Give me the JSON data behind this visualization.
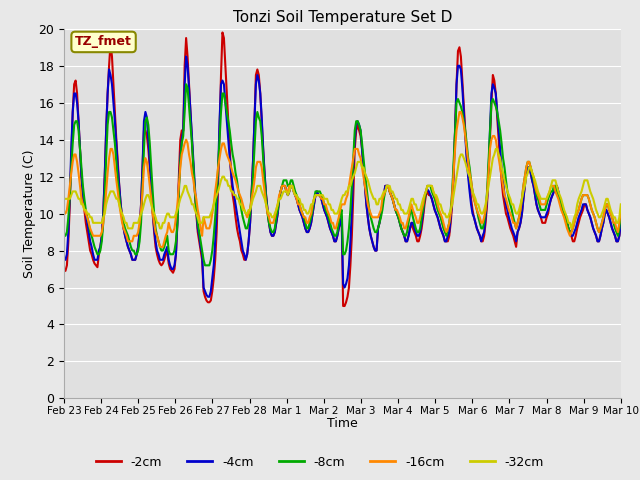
{
  "title": "Tonzi Soil Temperature Set D",
  "xlabel": "Time",
  "ylabel": "Soil Temperature (C)",
  "ylim": [
    0,
    20
  ],
  "yticks": [
    0,
    2,
    4,
    6,
    8,
    10,
    12,
    14,
    16,
    18,
    20
  ],
  "x_tick_labels": [
    "Feb 23",
    "Feb 24",
    "Feb 25",
    "Feb 26",
    "Feb 27",
    "Feb 28",
    "Mar 1",
    "Mar 2",
    "Mar 3",
    "Mar 4",
    "Mar 5",
    "Mar 6",
    "Mar 7",
    "Mar 8",
    "Mar 9",
    "Mar 10"
  ],
  "series_colors": [
    "#cc0000",
    "#0000cc",
    "#00aa00",
    "#ff8800",
    "#cccc00"
  ],
  "series_labels": [
    "-2cm",
    "-4cm",
    "-8cm",
    "-16cm",
    "-32cm"
  ],
  "annotation_text": "TZ_fmet",
  "fig_facecolor": "#e8e8e8",
  "ax_facecolor": "#e0e0e0",
  "grid_color": "#ffffff",
  "linewidth": 1.5,
  "n_days": 16,
  "pts_per_day": 24,
  "cm2": [
    7.0,
    6.9,
    7.2,
    8.5,
    10.5,
    13.0,
    15.5,
    17.0,
    17.2,
    16.5,
    15.0,
    13.5,
    12.0,
    11.0,
    10.2,
    9.5,
    9.0,
    8.5,
    8.0,
    7.8,
    7.5,
    7.3,
    7.2,
    7.1,
    7.8,
    8.2,
    8.8,
    10.0,
    12.0,
    14.5,
    16.5,
    18.0,
    19.2,
    18.5,
    17.0,
    15.5,
    14.0,
    12.8,
    11.5,
    10.5,
    9.8,
    9.2,
    8.8,
    8.5,
    8.2,
    8.0,
    7.8,
    7.5,
    7.5,
    7.5,
    7.8,
    8.2,
    9.0,
    10.5,
    12.5,
    14.5,
    14.5,
    14.2,
    13.5,
    12.5,
    11.2,
    10.0,
    9.0,
    8.2,
    7.8,
    7.5,
    7.3,
    7.2,
    7.3,
    7.5,
    7.8,
    8.0,
    7.3,
    7.0,
    6.9,
    6.8,
    7.0,
    7.8,
    9.5,
    12.0,
    14.0,
    14.5,
    14.5,
    18.0,
    19.5,
    18.5,
    17.0,
    15.5,
    14.0,
    12.5,
    11.2,
    10.0,
    9.0,
    8.5,
    8.0,
    7.5,
    5.8,
    5.5,
    5.3,
    5.2,
    5.2,
    5.3,
    5.8,
    6.5,
    7.5,
    9.0,
    11.5,
    14.5,
    17.5,
    19.8,
    19.5,
    18.0,
    16.5,
    15.0,
    13.5,
    12.0,
    11.0,
    10.5,
    9.8,
    9.2,
    8.8,
    8.5,
    8.0,
    7.8,
    7.5,
    7.5,
    7.8,
    8.5,
    9.5,
    11.0,
    12.8,
    15.0,
    17.5,
    17.8,
    17.5,
    16.5,
    15.0,
    13.5,
    12.0,
    11.0,
    10.2,
    9.5,
    9.0,
    8.8,
    8.8,
    9.0,
    9.5,
    10.0,
    10.8,
    11.2,
    11.5,
    11.5,
    11.5,
    11.2,
    11.0,
    11.2,
    11.5,
    11.5,
    11.2,
    11.0,
    10.8,
    10.5,
    10.2,
    10.0,
    9.8,
    9.5,
    9.2,
    9.0,
    9.0,
    9.2,
    9.5,
    10.0,
    10.5,
    11.0,
    11.2,
    11.0,
    11.0,
    10.8,
    10.5,
    10.2,
    10.0,
    9.8,
    9.5,
    9.2,
    9.0,
    8.8,
    8.5,
    8.5,
    8.8,
    9.2,
    9.5,
    9.8,
    5.0,
    5.0,
    5.2,
    5.5,
    6.0,
    7.2,
    8.8,
    11.0,
    13.5,
    14.5,
    14.8,
    14.5,
    14.2,
    13.5,
    12.5,
    11.5,
    10.5,
    9.8,
    9.2,
    8.8,
    8.5,
    8.2,
    8.0,
    8.0,
    9.2,
    9.5,
    10.0,
    10.5,
    11.0,
    11.5,
    11.5,
    11.5,
    11.2,
    11.0,
    10.8,
    10.5,
    10.2,
    10.0,
    9.8,
    9.5,
    9.2,
    9.0,
    8.8,
    8.5,
    8.5,
    8.8,
    9.2,
    9.5,
    9.2,
    9.0,
    8.8,
    8.5,
    8.5,
    8.8,
    9.2,
    9.8,
    10.5,
    11.0,
    11.2,
    11.0,
    11.0,
    10.8,
    10.5,
    10.2,
    10.0,
    9.8,
    9.5,
    9.2,
    9.0,
    8.8,
    8.5,
    8.5,
    8.5,
    8.8,
    9.5,
    10.5,
    12.0,
    14.5,
    17.0,
    18.8,
    19.0,
    18.5,
    17.2,
    15.8,
    14.5,
    13.2,
    12.2,
    11.5,
    10.8,
    10.2,
    9.8,
    9.5,
    9.2,
    9.0,
    8.8,
    8.5,
    8.5,
    8.8,
    9.5,
    10.5,
    12.0,
    14.0,
    16.0,
    17.5,
    17.2,
    16.5,
    15.2,
    14.0,
    12.8,
    11.8,
    11.0,
    10.5,
    10.0,
    9.8,
    9.5,
    9.2,
    9.0,
    8.8,
    8.5,
    8.2,
    9.0,
    9.2,
    9.5,
    10.0,
    10.8,
    11.5,
    12.2,
    12.5,
    12.5,
    12.2,
    11.8,
    11.5,
    11.0,
    10.5,
    10.2,
    10.0,
    9.8,
    9.5,
    9.5,
    9.5,
    9.8,
    10.0,
    10.5,
    10.8,
    11.0,
    11.2,
    11.5,
    11.5,
    11.2,
    10.8,
    10.5,
    10.2,
    10.0,
    9.8,
    9.5,
    9.2,
    9.0,
    8.8,
    8.5,
    8.5,
    8.8,
    9.2,
    9.5,
    9.8,
    10.0,
    10.2,
    10.5,
    10.5,
    10.2,
    10.0,
    9.8,
    9.5,
    9.2,
    9.0,
    8.8,
    8.5,
    8.5,
    8.8,
    9.2,
    9.5,
    10.0,
    10.2,
    10.0,
    9.8,
    9.5,
    9.2,
    9.0,
    8.8,
    8.5,
    8.5,
    8.8,
    9.5
  ],
  "cm4": [
    7.5,
    7.5,
    7.8,
    9.0,
    11.0,
    13.5,
    15.5,
    16.5,
    16.5,
    16.0,
    15.0,
    13.5,
    12.0,
    11.0,
    10.5,
    10.0,
    9.5,
    9.0,
    8.5,
    8.2,
    7.8,
    7.5,
    7.5,
    7.5,
    8.0,
    8.2,
    8.8,
    10.0,
    12.0,
    14.5,
    16.5,
    17.8,
    17.5,
    17.0,
    16.0,
    15.0,
    13.8,
    12.5,
    11.5,
    10.5,
    9.8,
    9.2,
    8.8,
    8.5,
    8.2,
    8.0,
    7.8,
    7.5,
    7.5,
    7.5,
    7.8,
    8.2,
    9.0,
    10.5,
    12.5,
    15.0,
    15.5,
    15.2,
    14.0,
    12.8,
    11.5,
    10.2,
    9.2,
    8.5,
    8.0,
    7.8,
    7.5,
    7.5,
    7.5,
    7.8,
    8.0,
    8.2,
    7.5,
    7.2,
    7.0,
    7.0,
    7.2,
    7.8,
    9.5,
    11.5,
    13.0,
    14.0,
    14.5,
    17.0,
    18.5,
    18.0,
    16.8,
    15.5,
    14.2,
    12.8,
    11.5,
    10.2,
    9.2,
    8.8,
    8.2,
    7.8,
    6.0,
    5.8,
    5.6,
    5.5,
    5.5,
    5.8,
    6.5,
    7.2,
    8.5,
    10.0,
    12.2,
    15.0,
    17.0,
    17.2,
    17.0,
    16.0,
    15.0,
    14.0,
    13.0,
    12.2,
    11.5,
    11.0,
    10.5,
    10.0,
    9.5,
    9.0,
    8.5,
    8.0,
    7.8,
    7.5,
    7.8,
    8.5,
    9.5,
    11.0,
    12.8,
    15.0,
    17.0,
    17.5,
    17.2,
    16.5,
    15.2,
    13.5,
    12.2,
    11.0,
    10.2,
    9.5,
    9.0,
    8.8,
    8.8,
    9.0,
    9.5,
    10.0,
    10.8,
    11.2,
    11.5,
    11.5,
    11.5,
    11.2,
    11.0,
    11.2,
    11.5,
    11.5,
    11.2,
    11.0,
    10.8,
    10.5,
    10.2,
    10.0,
    9.8,
    9.5,
    9.2,
    9.0,
    9.0,
    9.2,
    9.5,
    10.0,
    10.5,
    11.0,
    11.2,
    11.0,
    11.0,
    10.8,
    10.5,
    10.2,
    10.0,
    9.8,
    9.5,
    9.2,
    9.0,
    8.8,
    8.5,
    8.5,
    8.8,
    9.2,
    9.5,
    9.8,
    6.2,
    6.0,
    6.2,
    6.5,
    7.2,
    8.5,
    10.2,
    12.5,
    14.0,
    14.8,
    15.0,
    14.8,
    14.5,
    13.5,
    12.5,
    11.5,
    10.5,
    9.8,
    9.2,
    8.8,
    8.5,
    8.2,
    8.0,
    8.0,
    9.2,
    9.5,
    10.0,
    10.5,
    11.0,
    11.5,
    11.5,
    11.5,
    11.2,
    11.0,
    10.8,
    10.5,
    10.2,
    10.0,
    9.8,
    9.5,
    9.2,
    9.0,
    8.8,
    8.5,
    8.5,
    8.8,
    9.2,
    9.5,
    9.5,
    9.2,
    9.0,
    8.8,
    8.8,
    9.0,
    9.5,
    10.0,
    10.8,
    11.2,
    11.3,
    11.2,
    11.0,
    10.8,
    10.5,
    10.2,
    10.0,
    9.8,
    9.5,
    9.2,
    9.0,
    8.8,
    8.5,
    8.5,
    8.8,
    9.0,
    9.8,
    10.8,
    12.2,
    14.5,
    17.0,
    18.0,
    18.0,
    17.8,
    16.8,
    15.5,
    14.2,
    13.0,
    12.0,
    11.2,
    10.5,
    10.0,
    9.8,
    9.5,
    9.2,
    9.0,
    8.8,
    8.5,
    8.8,
    9.0,
    9.8,
    10.8,
    12.2,
    14.5,
    16.5,
    17.0,
    16.8,
    16.5,
    15.5,
    14.5,
    13.5,
    12.5,
    11.8,
    11.0,
    10.5,
    10.2,
    9.8,
    9.5,
    9.2,
    9.0,
    8.8,
    8.5,
    9.0,
    9.2,
    9.5,
    10.0,
    10.8,
    11.5,
    12.2,
    12.5,
    12.5,
    12.2,
    11.8,
    11.5,
    11.0,
    10.5,
    10.2,
    10.0,
    9.8,
    9.8,
    9.8,
    9.8,
    10.0,
    10.2,
    10.5,
    10.8,
    11.0,
    11.2,
    11.5,
    11.5,
    11.2,
    10.8,
    10.5,
    10.2,
    10.0,
    9.8,
    9.5,
    9.2,
    9.0,
    8.8,
    8.8,
    9.0,
    9.2,
    9.5,
    9.8,
    10.0,
    10.2,
    10.5,
    10.5,
    10.5,
    10.2,
    10.0,
    9.8,
    9.5,
    9.2,
    9.0,
    8.8,
    8.5,
    8.5,
    8.8,
    9.2,
    9.5,
    10.0,
    10.2,
    10.0,
    9.8,
    9.5,
    9.2,
    9.0,
    8.8,
    8.5,
    8.5,
    8.8,
    9.5
  ],
  "cm8": [
    8.8,
    8.8,
    9.0,
    9.8,
    11.0,
    12.5,
    13.8,
    14.8,
    15.0,
    15.0,
    14.5,
    13.5,
    12.5,
    11.5,
    10.8,
    10.2,
    9.8,
    9.5,
    9.0,
    8.8,
    8.5,
    8.2,
    8.0,
    7.8,
    7.8,
    8.0,
    8.5,
    9.5,
    11.0,
    13.0,
    14.8,
    15.5,
    15.5,
    15.2,
    14.5,
    13.8,
    12.8,
    11.8,
    11.0,
    10.2,
    9.8,
    9.5,
    9.2,
    9.0,
    8.8,
    8.5,
    8.2,
    8.0,
    8.0,
    7.8,
    7.8,
    8.0,
    8.5,
    9.5,
    11.5,
    13.5,
    15.0,
    15.2,
    14.8,
    13.8,
    12.5,
    11.2,
    10.0,
    9.2,
    8.8,
    8.5,
    8.2,
    8.0,
    8.0,
    8.2,
    8.5,
    8.8,
    8.0,
    7.8,
    7.8,
    7.8,
    8.0,
    8.5,
    9.5,
    11.2,
    12.8,
    13.8,
    14.2,
    15.5,
    17.0,
    16.8,
    15.8,
    14.8,
    13.8,
    12.5,
    11.2,
    10.2,
    9.5,
    9.0,
    8.5,
    8.0,
    7.5,
    7.2,
    7.2,
    7.2,
    7.2,
    7.5,
    8.0,
    8.8,
    9.8,
    11.0,
    12.5,
    14.0,
    15.5,
    16.5,
    16.5,
    16.0,
    15.5,
    15.0,
    14.5,
    13.8,
    13.2,
    12.8,
    12.2,
    11.8,
    11.2,
    10.8,
    10.2,
    9.8,
    9.5,
    9.2,
    9.2,
    9.5,
    10.0,
    11.0,
    12.0,
    13.5,
    15.0,
    15.5,
    15.2,
    15.0,
    14.2,
    13.0,
    11.8,
    10.8,
    10.0,
    9.5,
    9.2,
    9.0,
    9.0,
    9.2,
    9.8,
    10.2,
    10.8,
    11.2,
    11.5,
    11.8,
    11.8,
    11.8,
    11.5,
    11.5,
    11.8,
    11.8,
    11.5,
    11.2,
    11.0,
    10.8,
    10.5,
    10.2,
    10.0,
    9.8,
    9.5,
    9.2,
    9.2,
    9.5,
    9.8,
    10.2,
    10.8,
    11.2,
    11.2,
    11.2,
    11.2,
    11.0,
    10.8,
    10.5,
    10.2,
    10.0,
    9.8,
    9.5,
    9.2,
    9.0,
    8.8,
    8.8,
    9.0,
    9.5,
    10.0,
    10.2,
    7.8,
    7.8,
    8.0,
    8.5,
    9.2,
    10.2,
    11.5,
    13.0,
    14.5,
    15.0,
    15.0,
    14.8,
    14.5,
    13.8,
    13.0,
    12.2,
    11.5,
    10.8,
    10.2,
    9.8,
    9.5,
    9.2,
    9.0,
    9.0,
    9.2,
    9.5,
    9.8,
    10.2,
    10.8,
    11.2,
    11.5,
    11.5,
    11.2,
    11.0,
    10.8,
    10.5,
    10.2,
    10.0,
    9.8,
    9.5,
    9.2,
    9.0,
    8.8,
    8.8,
    9.0,
    9.5,
    10.0,
    10.2,
    9.8,
    9.5,
    9.2,
    9.0,
    9.0,
    9.2,
    9.8,
    10.2,
    10.8,
    11.2,
    11.5,
    11.5,
    11.5,
    11.2,
    11.0,
    10.8,
    10.5,
    10.2,
    10.0,
    9.8,
    9.5,
    9.2,
    9.0,
    8.8,
    9.2,
    9.5,
    10.2,
    11.2,
    12.8,
    14.5,
    16.0,
    16.2,
    16.0,
    15.8,
    15.5,
    15.0,
    14.5,
    13.8,
    13.0,
    12.5,
    11.8,
    11.2,
    10.8,
    10.5,
    10.2,
    9.8,
    9.5,
    9.2,
    9.2,
    9.5,
    10.2,
    11.2,
    12.8,
    14.5,
    16.0,
    16.2,
    16.0,
    15.8,
    15.5,
    15.0,
    14.5,
    13.8,
    13.0,
    12.5,
    11.8,
    11.2,
    10.8,
    10.5,
    10.2,
    9.8,
    9.5,
    9.2,
    9.5,
    9.8,
    10.2,
    10.8,
    11.5,
    12.0,
    12.5,
    12.8,
    12.8,
    12.5,
    12.2,
    11.8,
    11.5,
    11.0,
    10.8,
    10.5,
    10.2,
    10.2,
    10.2,
    10.2,
    10.5,
    10.8,
    11.0,
    11.2,
    11.2,
    11.5,
    11.5,
    11.2,
    11.0,
    10.8,
    10.5,
    10.2,
    10.0,
    9.8,
    9.5,
    9.2,
    9.0,
    9.0,
    9.2,
    9.5,
    9.8,
    10.0,
    10.2,
    10.5,
    10.8,
    11.0,
    11.0,
    11.0,
    11.0,
    10.8,
    10.5,
    10.2,
    10.0,
    9.8,
    9.5,
    9.2,
    9.0,
    9.2,
    9.5,
    9.8,
    10.2,
    10.5,
    10.5,
    10.2,
    10.0,
    9.8,
    9.5,
    9.2,
    9.0,
    8.8,
    9.2,
    10.0
  ],
  "cm16": [
    10.0,
    10.0,
    10.2,
    10.8,
    11.5,
    12.2,
    12.8,
    13.2,
    13.2,
    12.8,
    12.2,
    11.5,
    10.8,
    10.5,
    10.2,
    10.0,
    9.8,
    9.5,
    9.2,
    9.0,
    8.8,
    8.8,
    8.8,
    8.8,
    8.8,
    8.8,
    9.0,
    9.5,
    10.2,
    11.2,
    12.2,
    13.0,
    13.5,
    13.5,
    13.2,
    12.5,
    11.8,
    11.2,
    10.5,
    10.0,
    9.5,
    9.2,
    9.0,
    8.8,
    8.5,
    8.5,
    8.5,
    8.5,
    8.8,
    8.8,
    8.8,
    9.0,
    9.5,
    10.2,
    11.2,
    12.5,
    13.0,
    12.8,
    12.2,
    11.5,
    10.8,
    10.0,
    9.5,
    9.0,
    8.8,
    8.5,
    8.2,
    8.2,
    8.2,
    8.5,
    8.8,
    9.0,
    9.5,
    9.2,
    9.0,
    9.0,
    9.2,
    9.8,
    10.5,
    11.5,
    12.5,
    13.2,
    13.5,
    13.8,
    14.0,
    13.8,
    13.2,
    12.8,
    12.2,
    11.8,
    11.2,
    10.8,
    10.2,
    9.8,
    9.2,
    8.8,
    9.8,
    9.5,
    9.2,
    9.2,
    9.2,
    9.5,
    10.0,
    10.5,
    11.2,
    11.8,
    12.5,
    13.0,
    13.5,
    13.8,
    13.8,
    13.5,
    13.2,
    13.0,
    12.8,
    12.5,
    12.2,
    12.0,
    11.8,
    11.5,
    11.2,
    11.0,
    10.8,
    10.5,
    10.2,
    10.0,
    9.8,
    10.0,
    10.2,
    10.8,
    11.2,
    11.8,
    12.5,
    12.8,
    12.8,
    12.8,
    12.5,
    11.8,
    11.2,
    10.5,
    10.0,
    9.8,
    9.5,
    9.5,
    9.5,
    9.8,
    10.2,
    10.5,
    11.0,
    11.2,
    11.5,
    11.5,
    11.5,
    11.2,
    11.2,
    11.5,
    11.5,
    11.5,
    11.2,
    11.0,
    10.8,
    10.5,
    10.5,
    10.2,
    10.0,
    9.8,
    9.8,
    9.5,
    9.5,
    9.8,
    10.0,
    10.5,
    10.8,
    11.0,
    11.0,
    11.0,
    11.0,
    10.8,
    10.8,
    10.5,
    10.5,
    10.2,
    10.0,
    9.8,
    9.5,
    9.5,
    9.2,
    9.2,
    9.5,
    9.8,
    10.2,
    10.5,
    10.5,
    10.5,
    10.8,
    11.0,
    11.5,
    12.0,
    12.5,
    13.0,
    13.5,
    13.5,
    13.5,
    13.2,
    13.0,
    12.5,
    12.0,
    11.5,
    11.0,
    10.5,
    10.2,
    10.0,
    9.8,
    9.8,
    9.8,
    9.8,
    9.8,
    10.0,
    10.2,
    10.8,
    11.0,
    11.2,
    11.5,
    11.5,
    11.2,
    11.0,
    10.8,
    10.5,
    10.2,
    10.2,
    10.0,
    9.8,
    9.5,
    9.5,
    9.2,
    9.2,
    9.5,
    9.8,
    10.2,
    10.5,
    10.2,
    10.0,
    9.8,
    9.5,
    9.5,
    9.8,
    10.2,
    10.5,
    11.0,
    11.2,
    11.5,
    11.5,
    11.5,
    11.5,
    11.2,
    11.0,
    10.8,
    10.5,
    10.2,
    10.0,
    9.8,
    9.5,
    9.2,
    9.0,
    9.2,
    9.5,
    10.0,
    11.0,
    12.2,
    13.5,
    14.5,
    15.0,
    15.5,
    15.5,
    15.2,
    14.8,
    14.2,
    13.5,
    12.8,
    12.2,
    11.8,
    11.2,
    10.8,
    10.5,
    10.2,
    10.0,
    9.8,
    9.5,
    9.5,
    9.8,
    10.2,
    11.0,
    12.2,
    13.5,
    14.0,
    14.2,
    14.2,
    14.0,
    13.5,
    13.0,
    12.5,
    12.0,
    11.5,
    11.0,
    10.8,
    10.5,
    10.2,
    10.0,
    9.8,
    9.5,
    9.5,
    9.2,
    9.5,
    9.8,
    10.2,
    10.8,
    11.5,
    12.0,
    12.5,
    12.8,
    12.8,
    12.5,
    12.2,
    12.0,
    11.5,
    11.2,
    11.0,
    10.8,
    10.5,
    10.5,
    10.5,
    10.5,
    10.8,
    11.0,
    11.2,
    11.5,
    11.5,
    11.5,
    11.2,
    11.0,
    10.8,
    10.5,
    10.2,
    10.0,
    9.8,
    9.5,
    9.2,
    9.0,
    8.8,
    9.0,
    9.2,
    9.5,
    9.8,
    10.0,
    10.2,
    10.5,
    10.8,
    11.0,
    11.0,
    11.0,
    11.0,
    10.8,
    10.5,
    10.2,
    10.0,
    9.8,
    9.5,
    9.2,
    9.0,
    9.2,
    9.5,
    9.8,
    10.2,
    10.5,
    10.5,
    10.2,
    10.0,
    9.8,
    9.5,
    9.5,
    9.2,
    9.0,
    9.5,
    10.2
  ],
  "cm32": [
    10.8,
    10.8,
    10.8,
    10.8,
    10.8,
    11.0,
    11.2,
    11.2,
    11.2,
    11.0,
    10.8,
    10.8,
    10.5,
    10.5,
    10.2,
    10.2,
    10.0,
    10.0,
    9.8,
    9.8,
    9.5,
    9.5,
    9.5,
    9.5,
    9.5,
    9.5,
    9.5,
    9.8,
    10.0,
    10.5,
    10.8,
    11.0,
    11.2,
    11.2,
    11.2,
    11.0,
    10.8,
    10.8,
    10.5,
    10.2,
    10.0,
    9.8,
    9.5,
    9.5,
    9.2,
    9.2,
    9.2,
    9.2,
    9.5,
    9.5,
    9.5,
    9.5,
    9.8,
    10.0,
    10.2,
    10.5,
    10.8,
    11.0,
    11.0,
    10.8,
    10.5,
    10.2,
    10.0,
    9.8,
    9.5,
    9.5,
    9.2,
    9.2,
    9.5,
    9.5,
    9.8,
    10.0,
    10.0,
    9.8,
    9.8,
    9.8,
    9.8,
    10.0,
    10.2,
    10.5,
    10.8,
    11.0,
    11.2,
    11.5,
    11.5,
    11.2,
    11.0,
    10.8,
    10.5,
    10.5,
    10.2,
    10.0,
    9.8,
    9.5,
    9.5,
    9.5,
    9.8,
    9.8,
    9.8,
    9.8,
    9.8,
    10.0,
    10.2,
    10.5,
    10.8,
    11.0,
    11.2,
    11.5,
    11.8,
    12.0,
    12.0,
    11.8,
    11.8,
    11.5,
    11.5,
    11.2,
    11.2,
    11.0,
    11.0,
    10.8,
    10.8,
    10.5,
    10.5,
    10.2,
    10.2,
    10.0,
    10.0,
    10.2,
    10.2,
    10.5,
    10.8,
    11.0,
    11.2,
    11.5,
    11.5,
    11.5,
    11.2,
    11.0,
    10.8,
    10.5,
    10.2,
    10.0,
    10.0,
    9.8,
    9.8,
    10.0,
    10.2,
    10.5,
    10.8,
    10.8,
    11.0,
    11.2,
    11.2,
    11.2,
    11.0,
    11.2,
    11.5,
    11.5,
    11.2,
    11.0,
    11.0,
    10.8,
    10.8,
    10.5,
    10.5,
    10.2,
    10.2,
    10.0,
    10.0,
    10.2,
    10.5,
    10.5,
    10.8,
    11.0,
    11.0,
    11.0,
    11.0,
    11.0,
    11.0,
    10.8,
    10.8,
    10.8,
    10.5,
    10.5,
    10.2,
    10.2,
    10.0,
    10.0,
    10.0,
    10.2,
    10.5,
    10.8,
    11.0,
    11.0,
    11.2,
    11.2,
    11.5,
    11.5,
    11.8,
    12.0,
    12.2,
    12.5,
    12.8,
    12.8,
    12.8,
    12.5,
    12.5,
    12.2,
    12.0,
    11.8,
    11.5,
    11.2,
    11.0,
    10.8,
    10.8,
    10.5,
    10.5,
    10.8,
    10.8,
    11.0,
    11.2,
    11.2,
    11.5,
    11.5,
    11.5,
    11.2,
    11.2,
    11.0,
    10.8,
    10.8,
    10.5,
    10.5,
    10.2,
    10.2,
    10.0,
    10.0,
    10.0,
    10.2,
    10.5,
    10.8,
    10.8,
    10.5,
    10.5,
    10.2,
    10.2,
    10.2,
    10.5,
    10.8,
    11.0,
    11.2,
    11.5,
    11.5,
    11.5,
    11.5,
    11.2,
    11.0,
    11.0,
    10.8,
    10.5,
    10.5,
    10.2,
    10.0,
    10.0,
    9.8,
    9.8,
    10.0,
    10.2,
    10.5,
    11.0,
    11.5,
    12.0,
    12.5,
    13.0,
    13.2,
    13.2,
    13.0,
    12.8,
    12.5,
    12.2,
    12.0,
    11.5,
    11.2,
    11.0,
    10.8,
    10.5,
    10.5,
    10.2,
    10.0,
    10.0,
    10.2,
    10.5,
    11.0,
    11.5,
    12.0,
    12.5,
    13.0,
    13.2,
    13.5,
    13.5,
    13.2,
    13.0,
    12.5,
    12.2,
    11.8,
    11.5,
    11.2,
    11.0,
    10.8,
    10.5,
    10.5,
    10.2,
    10.0,
    10.0,
    10.2,
    10.5,
    10.8,
    11.2,
    11.5,
    12.0,
    12.2,
    12.5,
    12.5,
    12.2,
    12.0,
    11.8,
    11.5,
    11.2,
    11.0,
    10.8,
    10.8,
    10.8,
    10.8,
    10.8,
    11.0,
    11.2,
    11.5,
    11.8,
    11.8,
    11.8,
    11.5,
    11.2,
    11.0,
    10.8,
    10.5,
    10.2,
    10.0,
    9.8,
    9.5,
    9.5,
    9.2,
    9.5,
    9.8,
    10.0,
    10.5,
    10.8,
    11.0,
    11.2,
    11.5,
    11.8,
    11.8,
    11.8,
    11.5,
    11.2,
    11.0,
    10.8,
    10.5,
    10.2,
    10.0,
    9.8,
    9.8,
    10.0,
    10.2,
    10.5,
    10.8,
    10.8,
    10.5,
    10.2,
    10.0,
    9.8,
    9.8,
    9.5,
    9.5,
    9.8,
    10.5
  ]
}
